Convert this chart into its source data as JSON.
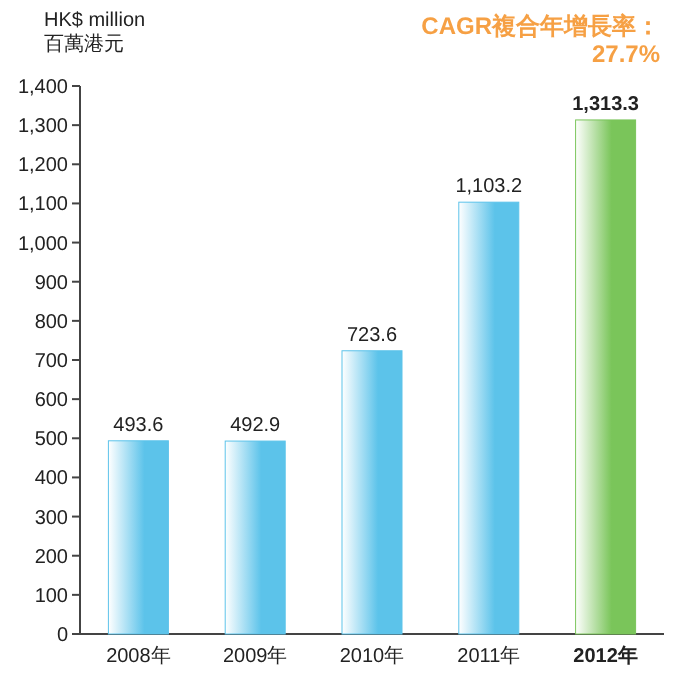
{
  "chart_data": {
    "type": "bar",
    "ylabel": "HK$ million\n百萬港元",
    "categories": [
      "2008年",
      "2009年",
      "2010年",
      "2011年",
      "**2012年**"
    ],
    "values": [
      493.6,
      492.9,
      723.6,
      1103.2,
      1313.3
    ],
    "value_labels": [
      "493.6",
      "492.9",
      "723.6",
      "1,103.2",
      "**1,313.3**"
    ],
    "colors": [
      "#5cc3ea",
      "#5cc3ea",
      "#5cc3ea",
      "#5cc3ea",
      "#7ac55a"
    ],
    "ylim": [
      0,
      1400
    ],
    "yticks": [
      0,
      100,
      200,
      300,
      400,
      500,
      600,
      700,
      800,
      900,
      {
        "value": 1000,
        "label": "1,000"
      },
      {
        "value": 1100,
        "label": "1,100"
      },
      {
        "value": 1200,
        "label": "1,200"
      },
      {
        "value": 1300,
        "label": "1,300"
      },
      {
        "value": 1400,
        "label": "1,400"
      }
    ],
    "annotations": [
      "CAGR複合年增長率：",
      "27.7%"
    ],
    "grid": false
  }
}
